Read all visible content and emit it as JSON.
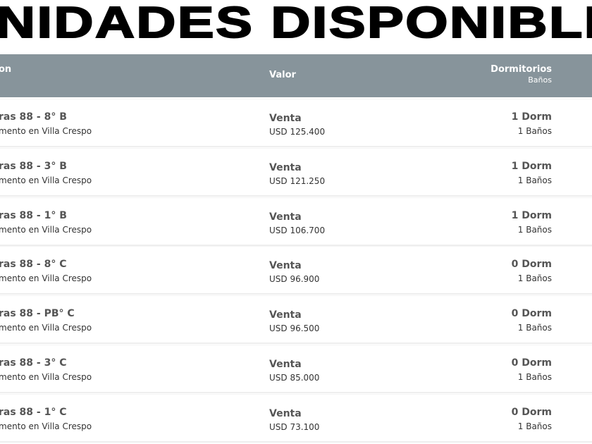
{
  "title": "NIDADES DISPONIBLE",
  "header": {
    "col1": "on",
    "col2": "Valor",
    "col3": "Dormitorios",
    "col3_sub": "Baños"
  },
  "rows": [
    [
      "ras 88 - 8° B",
      "mento en Villa Crespo",
      "Venta",
      "USD 125.400",
      "1 Dorm",
      "1 Baños"
    ],
    [
      "ras 88 - 3° B",
      "mento en Villa Crespo",
      "Venta",
      "USD 121.250",
      "1 Dorm",
      "1 Baños"
    ],
    [
      "ras 88 - 1° B",
      "mento en Villa Crespo",
      "Venta",
      "USD 106.700",
      "1 Dorm",
      "1 Baños"
    ],
    [
      "ras 88 - 8° C",
      "mento en Villa Crespo",
      "Venta",
      "USD 96.900",
      "0 Dorm",
      "1 Baños"
    ],
    [
      "ras 88 - PB° C",
      "mento en Villa Crespo",
      "Venta",
      "USD 96.500",
      "0 Dorm",
      "1 Baños"
    ],
    [
      "ras 88 - 3° C",
      "mento en Villa Crespo",
      "Venta",
      "USD 85.000",
      "0 Dorm",
      "1 Baños"
    ],
    [
      "ras 88 - 1° C",
      "mento en Villa Crespo",
      "Venta",
      "USD 73.100",
      "0 Dorm",
      "1 Baños"
    ]
  ]
}
